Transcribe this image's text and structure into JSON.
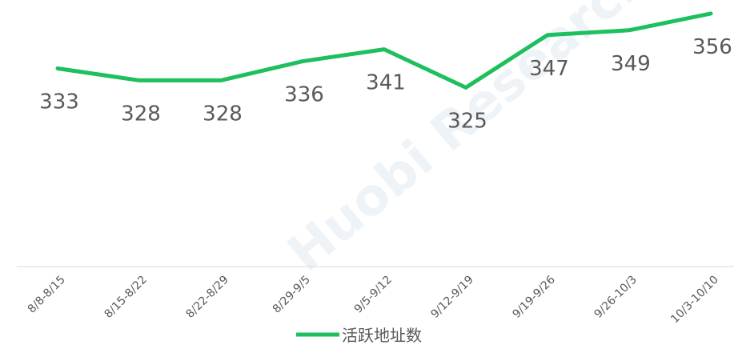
{
  "chart_data": {
    "type": "line",
    "watermark": "Huobi Research",
    "categories": [
      "8/8-8/15",
      "8/15-8/22",
      "8/22-8/29",
      "8/29-9/5",
      "9/5-9/12",
      "9/12-9/19",
      "9/19-9/26",
      "9/26-10/3",
      "10/3-10/10"
    ],
    "series": [
      {
        "name": "活跃地址数",
        "color": "#1dbf5e",
        "values": [
          333,
          328,
          328,
          336,
          341,
          325,
          347,
          349,
          356
        ]
      }
    ],
    "ylim": [
      250,
      360
    ],
    "legend": "bottom"
  }
}
